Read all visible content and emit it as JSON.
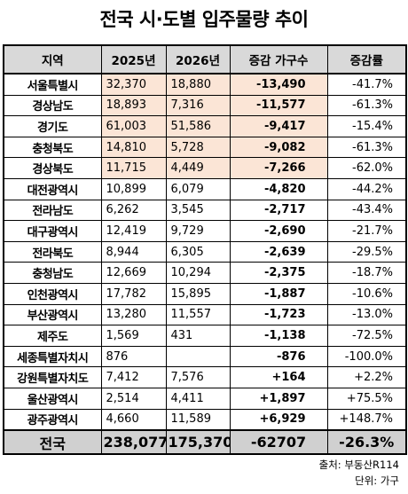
{
  "title": "전국 시·도별 입주물량 추이",
  "table": {
    "header": [
      "지역",
      "2025년",
      "2026년",
      "증감 가구수",
      "증감률"
    ],
    "rows": [
      [
        "서울특별시",
        "32,370",
        "18,880",
        "-13,490",
        "-41.7%"
      ],
      [
        "경상남도",
        "18,893",
        "7,316",
        "-11,577",
        "-61.3%"
      ],
      [
        "경기도",
        "61,003",
        "51,586",
        "-9,417",
        "-15.4%"
      ],
      [
        "충청북도",
        "14,810",
        "5,728",
        "-9,082",
        "-61.3%"
      ],
      [
        "경상북도",
        "11,715",
        "4,449",
        "-7,266",
        "-62.0%"
      ],
      [
        "대전광역시",
        "10,899",
        "6,079",
        "-4,820",
        "-44.2%"
      ],
      [
        "전라남도",
        "6,262",
        "3,545",
        "-2,717",
        "-43.4%"
      ],
      [
        "대구광역시",
        "12,419",
        "9,729",
        "-2,690",
        "-21.7%"
      ],
      [
        "전라북도",
        "8,944",
        "6,305",
        "-2,639",
        "-29.5%"
      ],
      [
        "충청남도",
        "12,669",
        "10,294",
        "-2,375",
        "-18.7%"
      ],
      [
        "인천광역시",
        "17,782",
        "15,895",
        "-1,887",
        "-10.6%"
      ],
      [
        "부산광역시",
        "13,280",
        "11,557",
        "-1,723",
        "-13.0%"
      ],
      [
        "제주도",
        "1,569",
        "431",
        "-1,138",
        "-72.5%"
      ],
      [
        "세종특별자치시",
        "876",
        null,
        "-876",
        "-100.0%"
      ],
      [
        "강원특별자치도",
        "7,412",
        "7,576",
        "+164",
        "+2.2%"
      ],
      [
        "울산광역시",
        "2,514",
        "4,411",
        "+1,897",
        "+75.5%"
      ],
      [
        "광주광역시",
        "4,660",
        "11,589",
        "+6,929",
        "+148.7%"
      ]
    ],
    "total": [
      "전국",
      "238,077",
      "175,370",
      "-62707",
      "-26.3%"
    ]
  },
  "source": "출처: 부동산R114",
  "unit": "단위: 가구"
}
